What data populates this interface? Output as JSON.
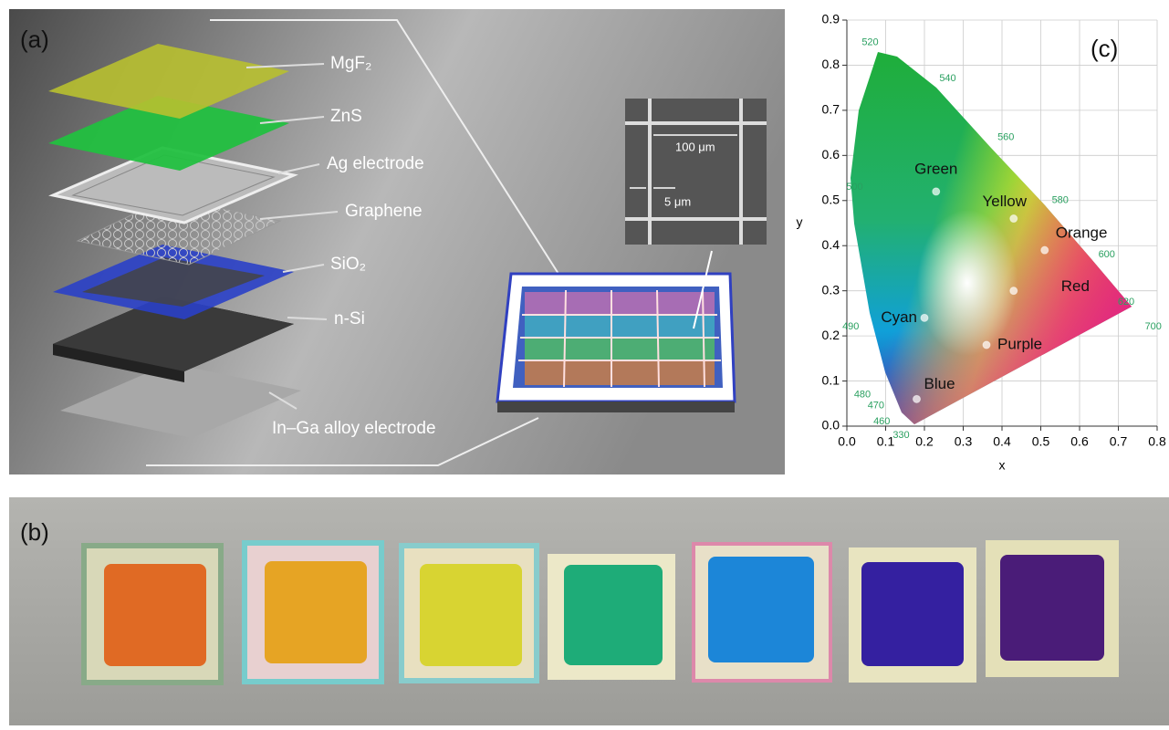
{
  "panel_a": {
    "label": "(a)",
    "layers": [
      "MgF₂",
      "ZnS",
      "Ag electrode",
      "Graphene",
      "SiO₂",
      "n-Si",
      "In–Ga alloy electrode"
    ],
    "inset": {
      "pitch": "100 μm",
      "width": "5 μm"
    }
  },
  "panel_b": {
    "label": "(b)"
  },
  "panel_c": {
    "label": "(c)"
  },
  "chart_data": {
    "type": "scatter",
    "xlabel": "x",
    "ylabel": "y",
    "xlim": [
      0,
      0.8
    ],
    "ylim": [
      0,
      0.9
    ],
    "xticks": [
      {
        "value": 0,
        "label": "0.0"
      },
      0.1,
      0.2,
      0.3,
      0.4,
      0.5,
      0.6,
      0.7,
      0.8
    ],
    "yticks": [
      {
        "value": 0,
        "label": "0.0"
      },
      0.1,
      0.2,
      0.3,
      0.4,
      0.5,
      0.6,
      0.7,
      0.8,
      0.9
    ],
    "grid": true,
    "points": {
      "labels": [
        "Green",
        "Yellow",
        "Orange",
        "Red",
        "Cyan",
        "Purple",
        "Blue"
      ],
      "x": [
        0.23,
        0.43,
        0.51,
        0.43,
        0.2,
        0.36,
        0.18
      ],
      "y": [
        0.52,
        0.46,
        0.39,
        0.3,
        0.24,
        0.18,
        0.06
      ]
    },
    "wavelengths": {
      "labels": [
        "520",
        "540",
        "560",
        "580",
        "600",
        "620",
        "700",
        "500",
        "490",
        "480",
        "470",
        "460",
        "330"
      ],
      "x": [
        0.06,
        0.26,
        0.41,
        0.55,
        0.67,
        0.72,
        0.79,
        0.02,
        0.01,
        0.04,
        0.075,
        0.09,
        0.14
      ],
      "y": [
        0.85,
        0.77,
        0.64,
        0.5,
        0.38,
        0.275,
        0.22,
        0.53,
        0.22,
        0.07,
        0.045,
        0.01,
        -0.02
      ]
    }
  }
}
